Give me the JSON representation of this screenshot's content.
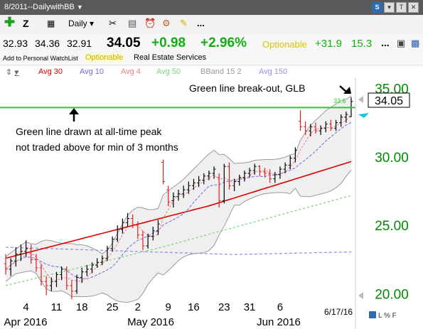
{
  "window": {
    "title": "8/2011--DailywithBB"
  },
  "toolbar": {
    "symbol": "Z",
    "period": "Daily",
    "more": "..."
  },
  "quote": {
    "open": "32.93",
    "high": "34.36",
    "low": "32.91",
    "last": "34.05",
    "change": "+0.98",
    "change_pct": "+2.96%",
    "optionable": "Optionable",
    "value2": "+31.9",
    "value3": "15.3",
    "more": "..."
  },
  "info": {
    "watchlist": "Add to Personal WatchList",
    "optionable": "Optionable",
    "industry": "Real Estate Services"
  },
  "legend": {
    "symbol": "Z",
    "avg30": "Avg 30",
    "avg10": "Avg 10",
    "avg4": "Avg 4",
    "avg50": "Avg 50",
    "bband": "BBand 15 2",
    "avg150": "Avg 150"
  },
  "colors": {
    "avg30": "#dd0000",
    "avg10": "#6a70e0",
    "avg4": "#f08080",
    "avg50": "#7fd27f",
    "bband": "#999999",
    "avg150": "#8f95e6",
    "glb_line": "#22d022",
    "positive": "#10b010",
    "price_axis": "#008a00"
  },
  "annotations": {
    "glb": "Green line break-out, GLB",
    "line1": "Green line drawn at all-time peak",
    "line2": "not traded above for min of 3 months",
    "peak_value": "33.6",
    "last_price_box": "34.05"
  },
  "chart_data": {
    "type": "candlestick",
    "y_ticks": [
      "35.00",
      "30.00",
      "25.00",
      "20.00"
    ],
    "ylim": [
      19.3,
      35.8
    ],
    "x_ticks": [
      "4",
      "11",
      "18",
      "25",
      "2",
      "9",
      "16",
      "23",
      "31",
      "6"
    ],
    "months": [
      "Apr 2016",
      "May 2016",
      "Jun 2016"
    ],
    "date_label": "6/17/16",
    "green_line_level": 33.6,
    "bars": [
      {
        "o": 22.2,
        "h": 22.9,
        "l": 21.4,
        "c": 21.8
      },
      {
        "o": 21.8,
        "h": 22.6,
        "l": 21.3,
        "c": 22.4
      },
      {
        "o": 22.4,
        "h": 23.4,
        "l": 22.0,
        "c": 22.9
      },
      {
        "o": 22.9,
        "h": 23.6,
        "l": 22.4,
        "c": 23.1
      },
      {
        "o": 23.1,
        "h": 23.9,
        "l": 22.7,
        "c": 23.3
      },
      {
        "o": 23.3,
        "h": 23.6,
        "l": 22.2,
        "c": 22.5
      },
      {
        "o": 22.5,
        "h": 22.9,
        "l": 21.6,
        "c": 21.9
      },
      {
        "o": 21.9,
        "h": 22.2,
        "l": 20.6,
        "c": 20.9
      },
      {
        "o": 20.9,
        "h": 21.3,
        "l": 19.9,
        "c": 20.6
      },
      {
        "o": 20.6,
        "h": 21.2,
        "l": 20.2,
        "c": 20.9
      },
      {
        "o": 20.9,
        "h": 21.6,
        "l": 20.5,
        "c": 21.4
      },
      {
        "o": 21.4,
        "h": 22.0,
        "l": 21.0,
        "c": 21.8
      },
      {
        "o": 21.8,
        "h": 22.0,
        "l": 20.3,
        "c": 20.6
      },
      {
        "o": 20.6,
        "h": 21.0,
        "l": 19.6,
        "c": 20.2
      },
      {
        "o": 20.2,
        "h": 21.4,
        "l": 20.0,
        "c": 21.2
      },
      {
        "o": 21.2,
        "h": 21.9,
        "l": 20.8,
        "c": 21.6
      },
      {
        "o": 21.6,
        "h": 22.1,
        "l": 21.3,
        "c": 21.8
      },
      {
        "o": 21.8,
        "h": 22.3,
        "l": 21.5,
        "c": 22.1
      },
      {
        "o": 22.1,
        "h": 22.6,
        "l": 21.9,
        "c": 22.3
      },
      {
        "o": 22.3,
        "h": 22.8,
        "l": 22.1,
        "c": 22.6
      },
      {
        "o": 22.6,
        "h": 23.5,
        "l": 22.4,
        "c": 23.3
      },
      {
        "o": 23.3,
        "h": 24.2,
        "l": 23.1,
        "c": 24.0
      },
      {
        "o": 24.0,
        "h": 25.0,
        "l": 23.8,
        "c": 24.7
      },
      {
        "o": 24.7,
        "h": 25.5,
        "l": 24.4,
        "c": 25.2
      },
      {
        "o": 25.2,
        "h": 25.9,
        "l": 24.9,
        "c": 25.5
      },
      {
        "o": 25.5,
        "h": 25.8,
        "l": 24.8,
        "c": 25.0
      },
      {
        "o": 25.0,
        "h": 25.3,
        "l": 24.0,
        "c": 24.3
      },
      {
        "o": 24.3,
        "h": 24.6,
        "l": 23.2,
        "c": 23.5
      },
      {
        "o": 23.5,
        "h": 24.4,
        "l": 23.3,
        "c": 24.2
      },
      {
        "o": 24.2,
        "h": 24.9,
        "l": 23.9,
        "c": 24.6
      },
      {
        "o": 24.6,
        "h": 25.4,
        "l": 24.3,
        "c": 25.1
      },
      {
        "o": 29.6,
        "h": 29.8,
        "l": 28.0,
        "c": 28.2
      },
      {
        "o": 27.6,
        "h": 27.9,
        "l": 26.4,
        "c": 26.7
      },
      {
        "o": 26.8,
        "h": 27.4,
        "l": 26.3,
        "c": 27.1
      },
      {
        "o": 27.1,
        "h": 27.6,
        "l": 26.8,
        "c": 27.3
      },
      {
        "o": 27.3,
        "h": 27.9,
        "l": 27.0,
        "c": 27.6
      },
      {
        "o": 27.6,
        "h": 28.2,
        "l": 27.3,
        "c": 27.9
      },
      {
        "o": 27.9,
        "h": 28.4,
        "l": 27.6,
        "c": 28.1
      },
      {
        "o": 28.1,
        "h": 28.6,
        "l": 27.8,
        "c": 28.3
      },
      {
        "o": 28.3,
        "h": 28.8,
        "l": 28.0,
        "c": 28.6
      },
      {
        "o": 28.6,
        "h": 29.0,
        "l": 28.3,
        "c": 28.8
      },
      {
        "o": 28.8,
        "h": 29.3,
        "l": 28.4,
        "c": 29.1
      },
      {
        "o": 28.5,
        "h": 28.8,
        "l": 26.3,
        "c": 26.8
      },
      {
        "o": 26.8,
        "h": 29.5,
        "l": 26.6,
        "c": 29.3
      },
      {
        "o": 29.3,
        "h": 29.6,
        "l": 27.6,
        "c": 27.9
      },
      {
        "o": 27.9,
        "h": 28.4,
        "l": 27.5,
        "c": 28.2
      },
      {
        "o": 28.2,
        "h": 28.7,
        "l": 27.9,
        "c": 28.5
      },
      {
        "o": 28.5,
        "h": 29.0,
        "l": 28.2,
        "c": 28.8
      },
      {
        "o": 28.8,
        "h": 29.2,
        "l": 28.5,
        "c": 29.0
      },
      {
        "o": 29.0,
        "h": 29.5,
        "l": 28.7,
        "c": 29.3
      },
      {
        "o": 29.3,
        "h": 29.4,
        "l": 28.6,
        "c": 28.9
      },
      {
        "o": 28.9,
        "h": 29.2,
        "l": 28.5,
        "c": 28.8
      },
      {
        "o": 28.8,
        "h": 29.1,
        "l": 28.1,
        "c": 28.4
      },
      {
        "o": 28.4,
        "h": 28.9,
        "l": 28.1,
        "c": 28.7
      },
      {
        "o": 28.7,
        "h": 29.3,
        "l": 28.4,
        "c": 29.1
      },
      {
        "o": 29.1,
        "h": 29.6,
        "l": 28.8,
        "c": 29.4
      },
      {
        "o": 29.4,
        "h": 30.1,
        "l": 29.1,
        "c": 29.9
      },
      {
        "o": 29.9,
        "h": 30.7,
        "l": 29.6,
        "c": 30.5
      },
      {
        "o": 32.6,
        "h": 33.4,
        "l": 31.9,
        "c": 32.2
      },
      {
        "o": 32.2,
        "h": 32.6,
        "l": 31.6,
        "c": 31.9
      },
      {
        "o": 31.9,
        "h": 32.4,
        "l": 31.5,
        "c": 32.2
      },
      {
        "o": 32.2,
        "h": 32.5,
        "l": 31.7,
        "c": 31.9
      },
      {
        "o": 31.9,
        "h": 32.3,
        "l": 31.6,
        "c": 32.1
      },
      {
        "o": 32.1,
        "h": 32.6,
        "l": 31.8,
        "c": 32.4
      },
      {
        "o": 32.4,
        "h": 32.7,
        "l": 31.9,
        "c": 32.1
      },
      {
        "o": 32.1,
        "h": 32.7,
        "l": 31.9,
        "c": 32.5
      },
      {
        "o": 32.5,
        "h": 33.1,
        "l": 32.2,
        "c": 32.9
      },
      {
        "o": 32.9,
        "h": 33.3,
        "l": 32.5,
        "c": 33.1
      },
      {
        "o": 32.93,
        "h": 34.36,
        "l": 32.91,
        "c": 34.05
      }
    ]
  }
}
